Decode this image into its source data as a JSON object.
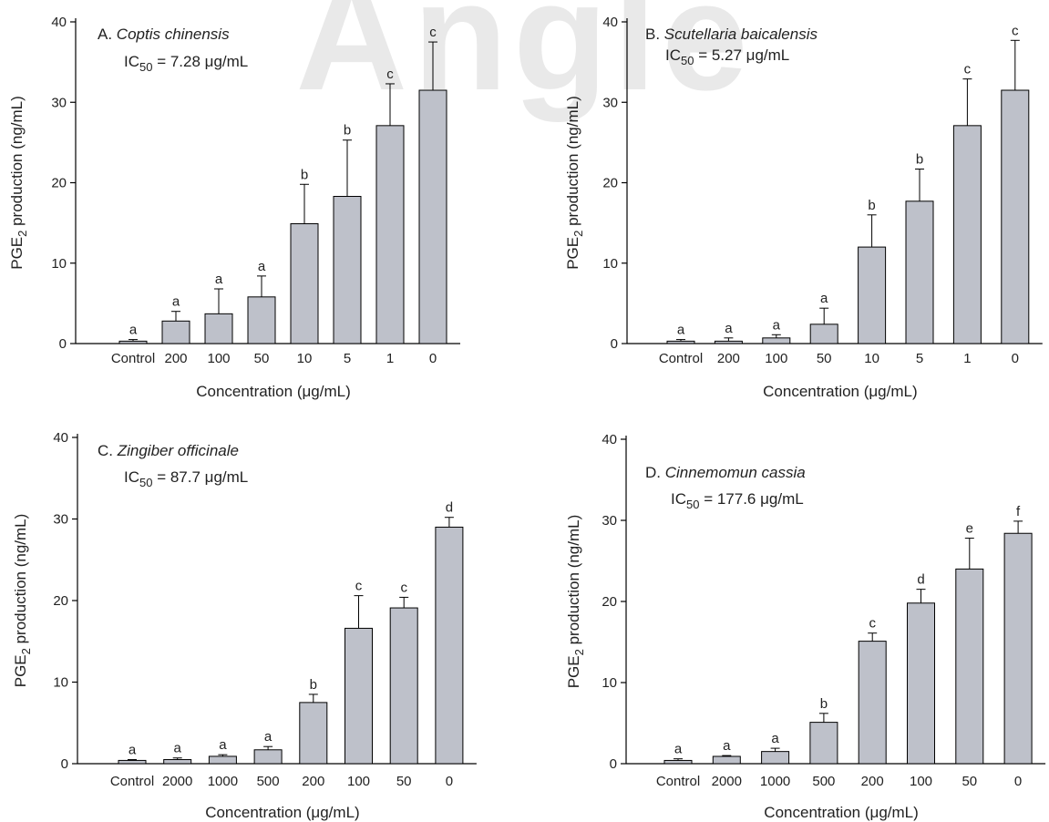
{
  "watermark": "Angle",
  "chart_data": [
    {
      "type": "bar",
      "panel": "A.",
      "title": "Coptis chinensis",
      "ic50_value": "= 7.28 μg/mL",
      "xlabel": "Concentration (μg/mL)",
      "ylabel": "PGE2 production (ng/mL)",
      "categories": [
        "Control",
        "200",
        "100",
        "50",
        "10",
        "5",
        "1",
        "0"
      ],
      "values": [
        0.3,
        2.8,
        3.7,
        5.8,
        14.9,
        18.3,
        27.1,
        31.5
      ],
      "errors": [
        0.2,
        1.2,
        3.1,
        2.6,
        4.9,
        7.0,
        5.2,
        6.0
      ],
      "letters": [
        "a",
        "a",
        "a",
        "a",
        "b",
        "b",
        "c",
        "c"
      ],
      "ylim": [
        0,
        40
      ],
      "yticks": [
        0,
        10,
        20,
        30,
        40
      ],
      "grid": false,
      "bar_color": "#bec1ca"
    },
    {
      "type": "bar",
      "panel": "B.",
      "title": "Scutellaria baicalensis",
      "ic50_value": "= 5.27 μg/mL",
      "xlabel": "Concentration (μg/mL)",
      "ylabel": "PGE2 production (ng/mL)",
      "categories": [
        "Control",
        "200",
        "100",
        "50",
        "10",
        "5",
        "1",
        "0"
      ],
      "values": [
        0.3,
        0.3,
        0.7,
        2.4,
        12.0,
        17.7,
        27.1,
        31.5
      ],
      "errors": [
        0.2,
        0.4,
        0.4,
        2.0,
        4.0,
        4.0,
        5.8,
        6.2
      ],
      "letters": [
        "a",
        "a",
        "a",
        "a",
        "b",
        "b",
        "c",
        "c"
      ],
      "ylim": [
        0,
        40
      ],
      "yticks": [
        0,
        10,
        20,
        30,
        40
      ],
      "grid": false,
      "bar_color": "#bec1ca"
    },
    {
      "type": "bar",
      "panel": "C.",
      "title": "Zingiber officinale",
      "ic50_value": "= 87.7 μg/mL",
      "xlabel": "Concentration (μg/mL)",
      "ylabel": "PGE2 production (ng/mL)",
      "categories": [
        "Control",
        "2000",
        "1000",
        "500",
        "200",
        "100",
        "50",
        "0"
      ],
      "values": [
        0.4,
        0.5,
        0.9,
        1.7,
        7.5,
        16.6,
        19.1,
        29.0
      ],
      "errors": [
        0.1,
        0.2,
        0.2,
        0.4,
        1.0,
        4.0,
        1.3,
        1.2
      ],
      "letters": [
        "a",
        "a",
        "a",
        "a",
        "b",
        "c",
        "c",
        "d"
      ],
      "ylim": [
        0,
        40
      ],
      "yticks": [
        0,
        10,
        20,
        30,
        40
      ],
      "grid": false,
      "bar_color": "#bec1ca"
    },
    {
      "type": "bar",
      "panel": "D.",
      "title": "Cinnemomun cassia",
      "ic50_value": "= 177.6 μg/mL",
      "xlabel": "Concentration (μg/mL)",
      "ylabel": "PGE2 production (ng/mL)",
      "categories": [
        "Control",
        "2000",
        "1000",
        "500",
        "200",
        "100",
        "50",
        "0"
      ],
      "values": [
        0.4,
        0.9,
        1.5,
        5.1,
        15.1,
        19.8,
        24.0,
        28.4
      ],
      "errors": [
        0.2,
        0.1,
        0.4,
        1.1,
        1.0,
        1.7,
        3.8,
        1.5
      ],
      "letters": [
        "a",
        "a",
        "a",
        "b",
        "c",
        "d",
        "e",
        "f"
      ],
      "ylim": [
        0,
        40
      ],
      "yticks": [
        0,
        10,
        20,
        30,
        40
      ],
      "grid": false,
      "bar_color": "#bec1ca"
    }
  ]
}
